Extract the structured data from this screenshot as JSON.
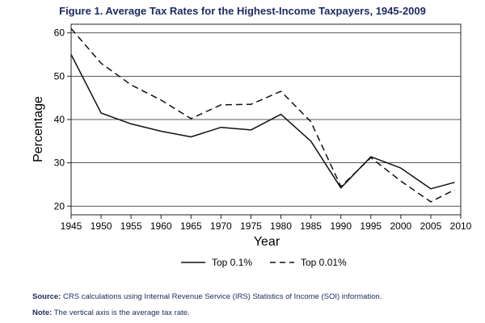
{
  "chart_data": {
    "type": "line",
    "title": "Figure 1. Average Tax Rates for the Highest-Income Taxpayers, 1945-2009",
    "xlabel": "Year",
    "ylabel": "Percentage",
    "xlim": [
      1945,
      2010
    ],
    "ylim": [
      18,
      62
    ],
    "x_ticks": [
      1945,
      1950,
      1955,
      1960,
      1965,
      1970,
      1975,
      1980,
      1985,
      1990,
      1995,
      2000,
      2005,
      2010
    ],
    "y_ticks": [
      20,
      30,
      40,
      50,
      60
    ],
    "x": [
      1945,
      1950,
      1955,
      1960,
      1965,
      1970,
      1975,
      1980,
      1985,
      1990,
      1995,
      2000,
      2005,
      2009
    ],
    "series": [
      {
        "name": "Top 0.1%",
        "style": "solid",
        "values": [
          55,
          41.5,
          39,
          37.3,
          36,
          38.2,
          37.6,
          41.2,
          35,
          24.2,
          31.4,
          28.8,
          24,
          25.5
        ]
      },
      {
        "name": "Top 0.01%",
        "style": "dashed",
        "values": [
          61,
          53,
          48,
          44.5,
          40.2,
          43.4,
          43.5,
          46.5,
          39.5,
          24.5,
          31.2,
          25.8,
          21,
          23.8
        ]
      }
    ],
    "legend_position": "bottom",
    "grid": "horizontal"
  },
  "notes": {
    "source_label": "Source:",
    "source_text": "CRS calculations using Internal Revenue Service (IRS) Statistics of Income (SOI) information.",
    "note_label": "Note:",
    "note_text": "The vertical axis is the average tax rate."
  },
  "colors": {
    "title": "#1b2a5e",
    "line": "#111111",
    "grid": "#222222"
  }
}
